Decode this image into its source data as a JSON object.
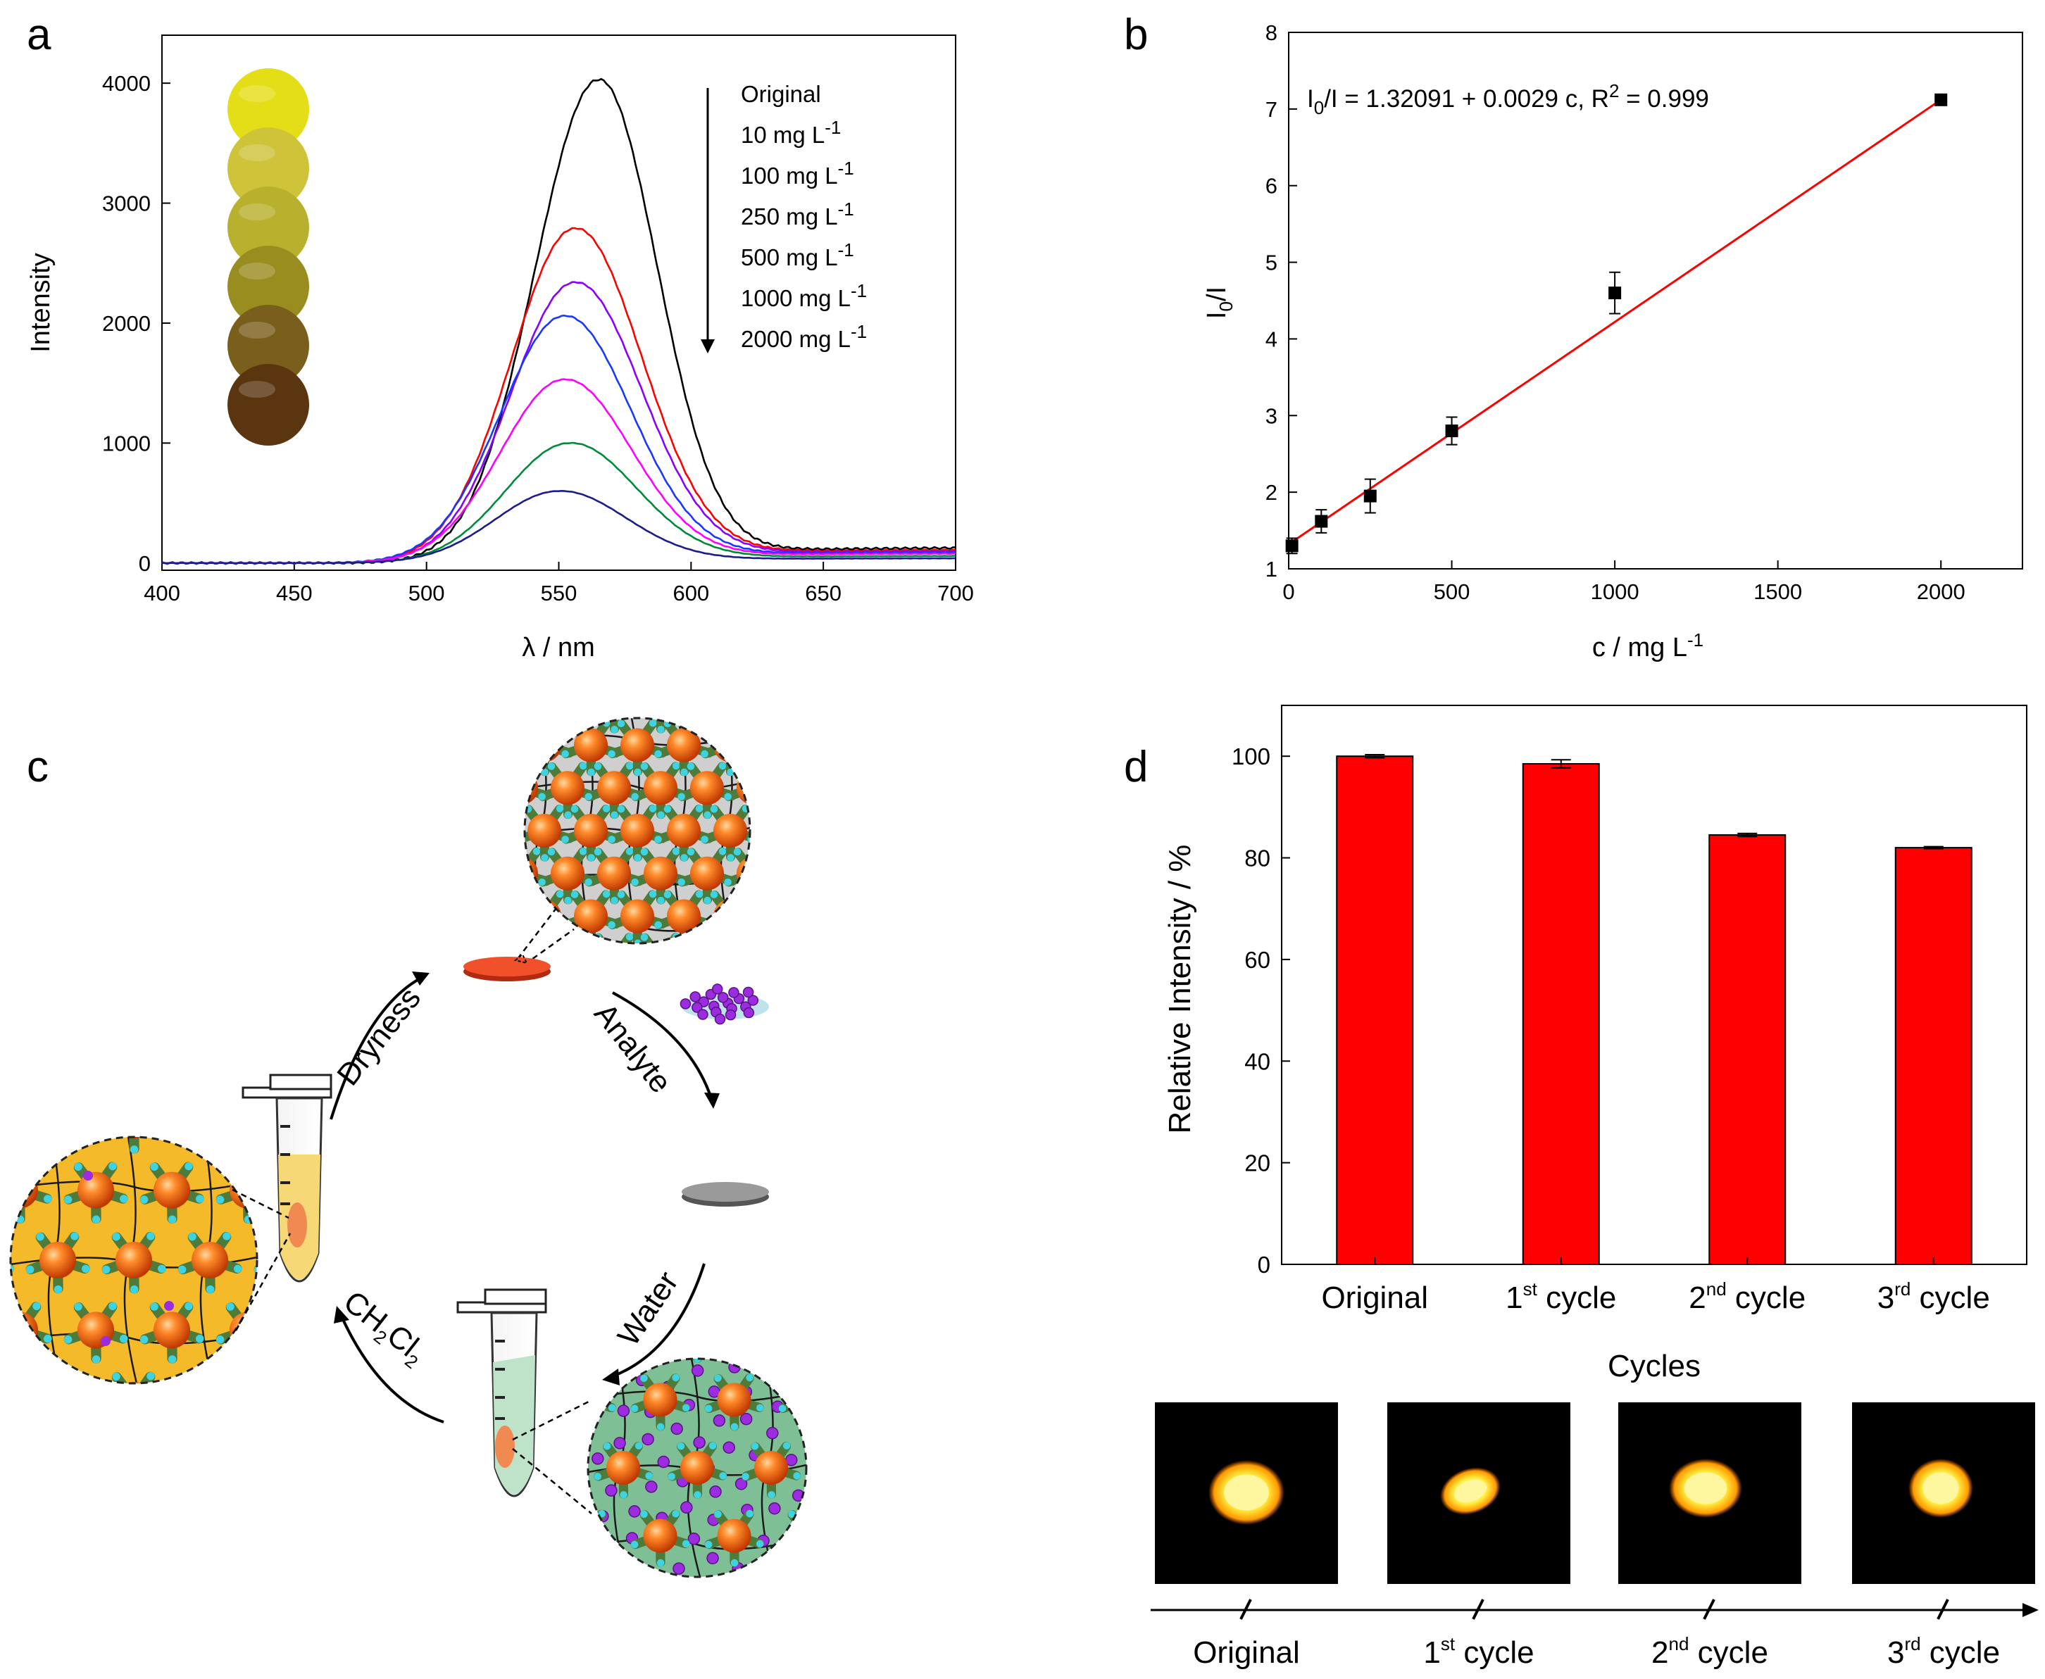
{
  "panels": {
    "a": "a",
    "b": "b",
    "c": "c",
    "d": "d"
  },
  "colors": {
    "original": "#000000",
    "c10": "#ff0000",
    "c100": "#8a00ff",
    "c250": "#1a37ff",
    "c500": "#ff00ff",
    "c1000": "#008a3a",
    "c2000": "#1c1c8c",
    "fit": "#ff0000",
    "bar": "#ff0000"
  },
  "chart_data": [
    {
      "id": "a",
      "type": "line",
      "xlabel": "λ / nm",
      "ylabel": "Intensity",
      "xlim": [
        400,
        700
      ],
      "ylim": [
        -60,
        4400
      ],
      "xticks": [
        400,
        450,
        500,
        550,
        600,
        650,
        700
      ],
      "yticks": [
        0,
        1000,
        2000,
        3000,
        4000
      ],
      "legend_title": "",
      "legend": [
        {
          "base": "Original",
          "sup": ""
        },
        {
          "base": "10 mg L",
          "sup": "-1"
        },
        {
          "base": "100 mg L",
          "sup": "-1"
        },
        {
          "base": "250 mg L",
          "sup": "-1"
        },
        {
          "base": "500 mg L",
          "sup": "-1"
        },
        {
          "base": "1000 mg L",
          "sup": "-1"
        },
        {
          "base": "2000 mg L",
          "sup": "-1"
        }
      ],
      "swatch_colors": [
        "#e4de18",
        "#cfc33a",
        "#b9b12e",
        "#9a8d20",
        "#7a5f1c",
        "#5a3510"
      ],
      "series": [
        {
          "name": "Original",
          "color": "#000000",
          "peak_x": 565,
          "peak": 4030,
          "sigma_left": 24,
          "sigma_right": 22,
          "tail": 130
        },
        {
          "name": "10 mg L-1",
          "color": "#ff0000",
          "peak_x": 556,
          "peak": 2790,
          "sigma_left": 24,
          "sigma_right": 25,
          "tail": 110
        },
        {
          "name": "100 mg L-1",
          "color": "#8a00ff",
          "peak_x": 556,
          "peak": 2340,
          "sigma_left": 24,
          "sigma_right": 25,
          "tail": 100
        },
        {
          "name": "250 mg L-1",
          "color": "#1a37ff",
          "peak_x": 552,
          "peak": 2060,
          "sigma_left": 24,
          "sigma_right": 25,
          "tail": 90
        },
        {
          "name": "500 mg L-1",
          "color": "#ff00ff",
          "peak_x": 552,
          "peak": 1530,
          "sigma_left": 24,
          "sigma_right": 25,
          "tail": 80
        },
        {
          "name": "1000 mg L-1",
          "color": "#008a3a",
          "peak_x": 554,
          "peak": 1000,
          "sigma_left": 24,
          "sigma_right": 25,
          "tail": 60
        },
        {
          "name": "2000 mg L-1",
          "color": "#1c1c8c",
          "peak_x": 550,
          "peak": 600,
          "sigma_left": 24,
          "sigma_right": 25,
          "tail": 40
        }
      ]
    },
    {
      "id": "b",
      "type": "scatter",
      "xlabel": "c / mg L",
      "xlabel_sup": "-1",
      "ylabel_main": "I",
      "ylabel_sub": "0",
      "ylabel_rest": "/I",
      "xlim": [
        0,
        2250
      ],
      "ylim": [
        1,
        8
      ],
      "xticks": [
        0,
        500,
        1000,
        1500,
        2000
      ],
      "yticks": [
        1,
        2,
        3,
        4,
        5,
        6,
        7,
        8
      ],
      "x": [
        10,
        100,
        250,
        500,
        1000,
        2000
      ],
      "y": [
        1.3,
        1.62,
        1.95,
        2.8,
        4.6,
        7.12
      ],
      "err": [
        0.1,
        0.15,
        0.22,
        0.18,
        0.27,
        0.04
      ],
      "fit": {
        "intercept": 1.32091,
        "slope": 0.0029,
        "x_range": [
          0,
          2000
        ]
      },
      "annotation": {
        "p1": "I",
        "s1": "0",
        "p2": "/I = 1.32091 + 0.0029 c, R",
        "s2": "2",
        "p3": " = 0.999"
      }
    },
    {
      "id": "d",
      "type": "bar",
      "xlabel": "Cycles",
      "ylabel": "Relative Intensity / %",
      "ylim": [
        0,
        110
      ],
      "yticks": [
        0,
        20,
        40,
        60,
        80,
        100
      ],
      "categories": [
        {
          "pre": "Original",
          "sup": "",
          "post": ""
        },
        {
          "pre": "1",
          "sup": "st",
          "post": " cycle"
        },
        {
          "pre": "2",
          "sup": "nd",
          "post": " cycle"
        },
        {
          "pre": "3",
          "sup": "rd",
          "post": " cycle"
        }
      ],
      "values": [
        100.0,
        98.5,
        84.5,
        82.0
      ],
      "err": [
        0.3,
        0.8,
        0.3,
        0.2
      ]
    }
  ],
  "scheme": {
    "arrows": {
      "dryness": "Dryness",
      "analyte": "Analyte",
      "water": "Water",
      "ch2cl2": {
        "a": "CH",
        "s1": "2",
        "b": "Cl",
        "s2": "2"
      }
    }
  },
  "photos": {
    "labels": [
      {
        "pre": "Original",
        "sup": "",
        "post": ""
      },
      {
        "pre": "1",
        "sup": "st",
        "post": " cycle"
      },
      {
        "pre": "2",
        "sup": "nd",
        "post": " cycle"
      },
      {
        "pre": "3",
        "sup": "rd",
        "post": " cycle"
      }
    ]
  }
}
